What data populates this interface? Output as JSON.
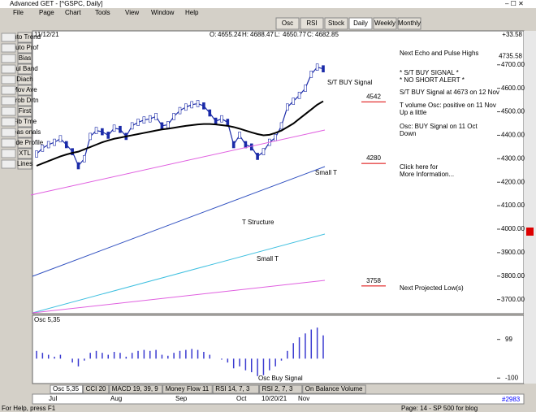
{
  "window": {
    "title": "Advanced GET - [^GSPC, Daily]",
    "menu": [
      "File",
      "Page",
      "Chart",
      "Tools",
      "View",
      "Window",
      "Help"
    ]
  },
  "toolbar": [
    "Osc",
    "RSI",
    "Stock",
    "Daily",
    "Weekly",
    "Monthly"
  ],
  "side_tools": [
    "Auto Trend",
    "Auto Prof",
    "Bias",
    "Bul Band",
    "Diach",
    "Mov Ave",
    "Prob Drtn",
    "First",
    "Fib Tme",
    "Seas onals",
    "Trade Profile",
    "XTL",
    "Lines"
  ],
  "chart_data": {
    "type": "line",
    "date": "11/12/21",
    "quote": [
      {
        "label": "O:",
        "value": 4655.24
      },
      {
        "label": "H:",
        "value": 4688.47
      },
      {
        "label": "L:",
        "value": 4650.77
      },
      {
        "label": "C:",
        "value": 4682.85
      }
    ],
    "change": {
      "value": 33.58,
      "label": "+33.58"
    },
    "top_price": 4735.58,
    "series": [
      {
        "name": "Price",
        "color": "#1a2aa8",
        "values": [
          4320,
          4345,
          4360,
          4370,
          4385,
          4360,
          4330,
          4270,
          4300,
          4395,
          4420,
          4415,
          4400,
          4430,
          4425,
          4395,
          4440,
          4455,
          4465,
          4470,
          4480,
          4440,
          4445,
          4480,
          4505,
          4520,
          4530,
          4535,
          4525,
          4495,
          4460,
          4470,
          4455,
          4360,
          4400,
          4360,
          4350,
          4310,
          4330,
          4370,
          4390,
          4440,
          4520,
          4545,
          4570,
          4600,
          4660,
          4690,
          4683
        ]
      },
      {
        "name": "Moving Average",
        "color": "#000000",
        "values": [
          4270,
          4280,
          4290,
          4300,
          4310,
          4318,
          4325,
          4330,
          4340,
          4350,
          4360,
          4370,
          4378,
          4385,
          4390,
          4395,
          4400,
          4405,
          4410,
          4415,
          4420,
          4425,
          4428,
          4432,
          4436,
          4440,
          4443,
          4446,
          4448,
          4448,
          4446,
          4443,
          4440,
          4435,
          4428,
          4420,
          4412,
          4405,
          4400,
          4402,
          4410,
          4420,
          4435,
          4450,
          4470,
          4490,
          4510,
          4530,
          4545
        ]
      }
    ],
    "ylim": [
      3640,
      4810
    ],
    "yticks": [
      {
        "value": 3700,
        "label": "3700.00"
      },
      {
        "value": 3800,
        "label": "3800.00"
      },
      {
        "value": 3900,
        "label": "3900.00"
      },
      {
        "value": 4000,
        "label": "4000.00"
      },
      {
        "value": 4100,
        "label": "4100.00"
      },
      {
        "value": 4200,
        "label": "4200.00"
      },
      {
        "value": 4300,
        "label": "4300.00"
      },
      {
        "value": 4400,
        "label": "4400.00"
      },
      {
        "value": 4500,
        "label": "4500.00"
      },
      {
        "value": 4600,
        "label": "4600.00"
      },
      {
        "value": 4700,
        "label": "4700.00"
      }
    ],
    "projections": [
      4542,
      4280,
      3758
    ],
    "chart_labels": [
      "S/T BUY Signal",
      "Small T",
      "T Structure",
      "Small T"
    ],
    "notes": [
      "Next Echo and Pulse Highs",
      "* S/T BUY SIGNAL *",
      "* NO SHORT ALERT *",
      "S/T BUY Signal at 4673 on 12 Nov",
      "T volume Osc: positive on 11 Nov",
      "Up a little",
      "Osc: BUY Signal on 11 Oct",
      "Down",
      "Click here for",
      "More Information...",
      "Next Projected Low(s)"
    ],
    "oscillator": {
      "name": "Osc 5,35",
      "color": "#3a3ad0",
      "values": [
        40,
        30,
        20,
        10,
        20,
        0,
        -20,
        -40,
        -10,
        30,
        40,
        30,
        20,
        35,
        30,
        10,
        30,
        40,
        45,
        40,
        45,
        20,
        15,
        30,
        40,
        45,
        50,
        45,
        35,
        20,
        0,
        -5,
        -20,
        -50,
        -40,
        -60,
        -70,
        -90,
        -85,
        -60,
        -40,
        -10,
        40,
        80,
        110,
        130,
        150,
        160,
        120
      ],
      "ylim": [
        -120,
        215
      ],
      "yticks": [
        99,
        -100
      ],
      "label": "Osc Buy Signal"
    },
    "tabs": [
      "Osc 5,35",
      "CCI 20",
      "MACD 19, 39, 9",
      "Money Flow 11",
      "RSI 14, 7, 3",
      "RSI 2, 7, 3",
      "On Balance Volume"
    ],
    "x_labels": [
      "Jul",
      "Aug",
      "Sep",
      "Oct",
      "10/20/21",
      "Nov"
    ]
  },
  "status": {
    "help": "For Help, press F1",
    "page": "Page: 14 - SP 500 for blog",
    "id": "#2983"
  }
}
